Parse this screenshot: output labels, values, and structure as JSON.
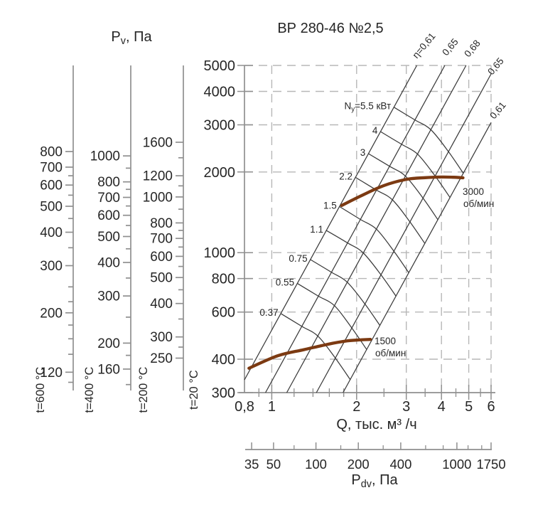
{
  "chart_data": {
    "type": "line",
    "title": "ВР 280-46 №2,5",
    "scales": "log-log",
    "x_axis": {
      "label": "Q, тыс. м³ /ч",
      "range": [
        0.8,
        6
      ],
      "major_ticks": [
        0.8,
        1,
        2,
        3,
        4,
        5,
        6
      ],
      "major_tick_labels": [
        "0,8",
        "1",
        "2",
        "3",
        "4",
        "5",
        "6"
      ],
      "minor_ticks": [
        0.9,
        1.2,
        1.4,
        1.6,
        1.8,
        2.5,
        3.5,
        4.5,
        5.5
      ],
      "grid_values": [
        1,
        2,
        3,
        4,
        5,
        6
      ]
    },
    "y_axis": {
      "label_parts": {
        "prefix": "P",
        "sub": "v",
        "suffix": ", Па"
      },
      "temperature": "t=20 °C",
      "range": [
        300,
        5000
      ],
      "major_ticks": [
        5000,
        4000,
        3000,
        2000,
        1000,
        800,
        600,
        400,
        300
      ],
      "grid_values": [
        5000,
        4000,
        3000,
        2000,
        1000,
        800,
        600,
        400
      ]
    },
    "temp_scales": [
      {
        "label": "t=600 °C",
        "factor": 0.3356,
        "major_ticks": [
          800,
          700,
          600,
          500,
          400,
          300,
          200,
          120
        ],
        "minor_ticks": [
          650,
          550,
          450,
          350,
          250,
          220,
          180,
          160,
          140,
          110
        ]
      },
      {
        "label": "t=400 °C",
        "factor": 0.4354,
        "major_ticks": [
          1000,
          800,
          700,
          600,
          500,
          400,
          300,
          200,
          160
        ],
        "minor_ticks": [
          900,
          750,
          650,
          550,
          450,
          350,
          250,
          180,
          140
        ]
      },
      {
        "label": "t=200 °C",
        "factor": 0.6195,
        "major_ticks": [
          1600,
          1200,
          1000,
          800,
          700,
          600,
          500,
          400,
          300,
          250
        ],
        "minor_ticks": [
          1400,
          1100,
          900,
          750,
          650,
          550,
          450,
          350,
          275
        ]
      }
    ],
    "pdv_axis": {
      "label_parts": {
        "prefix": "P",
        "sub": "dv",
        "suffix": ", Па"
      },
      "max_value": 1750,
      "major_ticks": [
        35,
        50,
        100,
        200,
        400,
        1000,
        1750
      ],
      "minor_ticks": [
        70,
        150,
        300,
        600,
        800,
        1200,
        1500
      ]
    },
    "efficiency_lines": [
      {
        "label": "η=0,61",
        "eta": 0.61,
        "points": [
          [
            0.8,
            335
          ],
          [
            3.27,
            5000
          ]
        ]
      },
      {
        "label": "0,65",
        "eta": 0.65,
        "points": [
          [
            0.95,
            300
          ],
          [
            4.11,
            5000
          ]
        ]
      },
      {
        "label": "0,68",
        "eta": 0.68,
        "points": [
          [
            1.13,
            300
          ],
          [
            4.89,
            5000
          ]
        ]
      },
      {
        "label": "0,65",
        "eta": 0.65,
        "points": [
          [
            1.44,
            300
          ],
          [
            6.0,
            4647
          ]
        ]
      },
      {
        "label": "0,61",
        "eta": 0.61,
        "points": [
          [
            1.79,
            300
          ],
          [
            6.0,
            3060
          ]
        ]
      }
    ],
    "power_curves": [
      {
        "kw": 5.5,
        "label": "Nу=5.5 кВт",
        "label_parts": {
          "prefix": "N",
          "sub": "у",
          "suffix": "=5.5 кВт"
        },
        "points": [
          [
            2.71,
            3491
          ],
          [
            3.22,
            3129
          ],
          [
            3.67,
            2875
          ],
          [
            4.24,
            2379
          ],
          [
            4.78,
            1979
          ]
        ]
      },
      {
        "kw": 4,
        "label": "4",
        "points": [
          [
            2.43,
            2831
          ],
          [
            2.89,
            2537
          ],
          [
            3.29,
            2332
          ],
          [
            3.8,
            1930
          ],
          [
            4.29,
            1605
          ]
        ]
      },
      {
        "kw": 3,
        "label": "3",
        "points": [
          [
            2.2,
            2343
          ],
          [
            2.62,
            2100
          ],
          [
            2.98,
            1930
          ],
          [
            3.44,
            1598
          ],
          [
            3.88,
            1329
          ]
        ]
      },
      {
        "kw": 2.2,
        "label": "2.2",
        "points": [
          [
            1.98,
            1911
          ],
          [
            2.35,
            1713
          ],
          [
            2.68,
            1574
          ],
          [
            3.09,
            1303
          ],
          [
            3.49,
            1083
          ]
        ]
      },
      {
        "kw": 1.5,
        "label": "1.5",
        "points": [
          [
            1.74,
            1485
          ],
          [
            2.06,
            1331
          ],
          [
            2.35,
            1224
          ],
          [
            2.71,
            1013
          ],
          [
            3.06,
            842
          ]
        ]
      },
      {
        "kw": 1.1,
        "label": "1.1",
        "points": [
          [
            1.56,
            1211
          ],
          [
            1.86,
            1086
          ],
          [
            2.11,
            998
          ],
          [
            2.44,
            826
          ],
          [
            2.76,
            687
          ]
        ]
      },
      {
        "kw": 0.75,
        "label": "0.75",
        "points": [
          [
            1.37,
            942
          ],
          [
            1.63,
            844
          ],
          [
            1.85,
            776
          ],
          [
            2.14,
            643
          ],
          [
            2.42,
            534
          ]
        ]
      },
      {
        "kw": 0.55,
        "label": "0.55",
        "points": [
          [
            1.23,
            768
          ],
          [
            1.46,
            689
          ],
          [
            1.67,
            633
          ],
          [
            1.92,
            524
          ],
          [
            2.17,
            435
          ]
        ]
      },
      {
        "kw": 0.37,
        "label": "0.37",
        "points": [
          [
            1.08,
            591
          ],
          [
            1.28,
            530
          ],
          [
            1.46,
            487
          ],
          [
            1.68,
            404
          ],
          [
            1.9,
            335
          ]
        ]
      }
    ],
    "speed_curves": [
      {
        "rpm": "1500",
        "unit": "об/мин",
        "points": [
          [
            0.83,
            370
          ],
          [
            1.05,
            412
          ],
          [
            1.3,
            434
          ],
          [
            1.6,
            456
          ],
          [
            1.85,
            468
          ],
          [
            2.05,
            472
          ],
          [
            2.24,
            474
          ]
        ]
      },
      {
        "rpm": "3000",
        "unit": "об/мин",
        "points": [
          [
            1.77,
            1500
          ],
          [
            2.1,
            1640
          ],
          [
            2.5,
            1780
          ],
          [
            3.0,
            1877
          ],
          [
            3.5,
            1905
          ],
          [
            4.0,
            1915
          ],
          [
            4.4,
            1912
          ],
          [
            4.77,
            1903
          ]
        ]
      }
    ],
    "colors": {
      "curve_black": "#3a3a3a",
      "speed_brown": "#7c3a12",
      "axis_gray": "#8f8f8f",
      "grid_gray": "#b7b7b7",
      "text": "#262626"
    }
  }
}
